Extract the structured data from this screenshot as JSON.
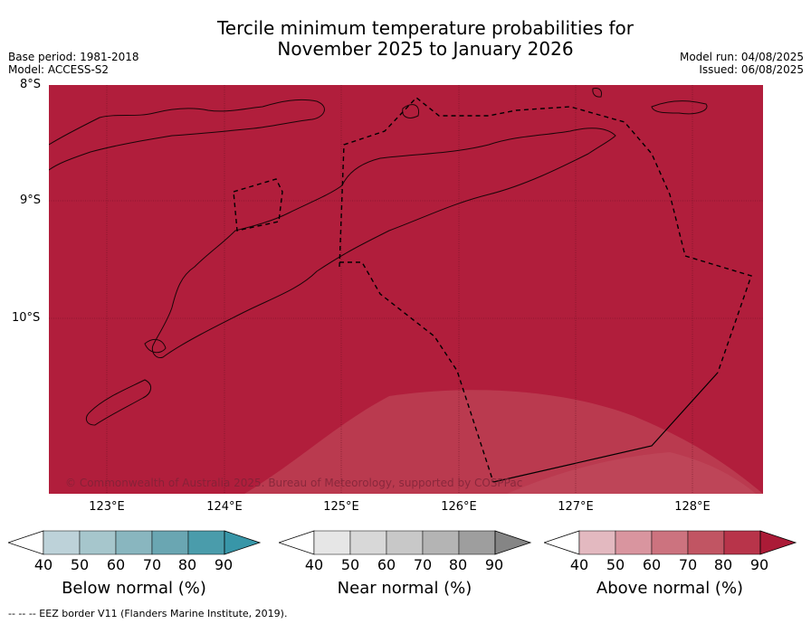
{
  "header": {
    "title_line1": "Tercile minimum temperature probabilities for",
    "title_line2": "November 2025 to January 2026",
    "base_period": "Base period: 1981-2018",
    "model": "Model: ACCESS-S2",
    "model_run": "Model run: 04/08/2025",
    "issued": "Issued: 06/08/2025"
  },
  "map": {
    "lat_labels": [
      "8°S",
      "9°S",
      "10°S"
    ],
    "lon_labels": [
      "123°E",
      "124°E",
      "125°E",
      "126°E",
      "127°E",
      "128°E"
    ],
    "copyright": "© Commonwealth of Australia 2025. Bureau of Meteorology, supported by COSPPac",
    "base_fill_color": "#b11e3c",
    "lighter_fill_color": "#ba3a4f",
    "lightest_fill_color": "#c04a5c"
  },
  "legends": [
    {
      "title": "Below normal (%)",
      "ticks": [
        "40",
        "50",
        "60",
        "70",
        "80",
        "90"
      ],
      "colors": [
        "#bdd2d9",
        "#a6c6cc",
        "#89b6bf",
        "#6aa6b2",
        "#4a9cab",
        "#3896a8"
      ]
    },
    {
      "title": "Near normal (%)",
      "ticks": [
        "40",
        "50",
        "60",
        "70",
        "80",
        "90"
      ],
      "colors": [
        "#e6e6e6",
        "#d8d8d8",
        "#c8c8c8",
        "#b4b4b4",
        "#9e9e9e",
        "#858585"
      ]
    },
    {
      "title": "Above normal (%)",
      "ticks": [
        "40",
        "50",
        "60",
        "70",
        "80",
        "90"
      ],
      "colors": [
        "#e3b9c0",
        "#d9959f",
        "#cc737f",
        "#c15563",
        "#b8344a",
        "#ab1b37"
      ]
    }
  ],
  "footer": "--  --  -- EEZ border V11 (Flanders Marine Institute, 2019)."
}
